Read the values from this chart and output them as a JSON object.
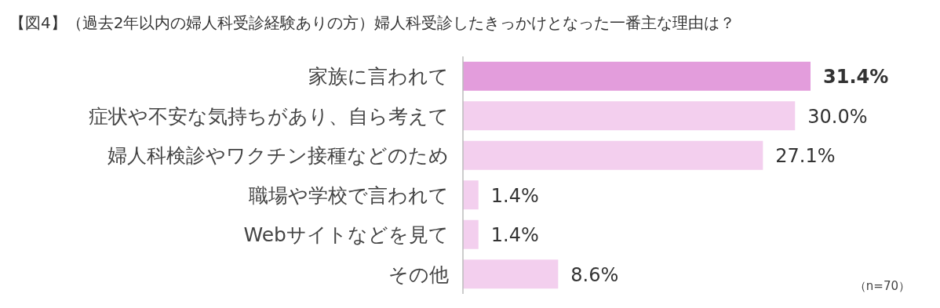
{
  "chart_data": {
    "type": "bar",
    "orientation": "horizontal",
    "title": "【図4】（過去2年以内の婦人科受診経験ありの方）婦人科受診したきっかけとなった一番主な理由は？",
    "categories": [
      "家族に言われて",
      "症状や不安な気持ちがあり、自ら考えて",
      "婦人科検診やワクチン接種などのため",
      "職場や学校で言われて",
      "Webサイトなどを見て",
      "その他"
    ],
    "values": [
      31.4,
      30.0,
      27.1,
      1.4,
      1.4,
      8.6
    ],
    "value_labels": [
      "31.4%",
      "30.0%",
      "27.1%",
      "1.4%",
      "1.4%",
      "8.6%"
    ],
    "colors": [
      "#e39ddc",
      "#f3cfee",
      "#f3cfee",
      "#f3cfee",
      "#f3cfee",
      "#f3cfee"
    ],
    "annotations": [
      "（n=70）"
    ]
  }
}
